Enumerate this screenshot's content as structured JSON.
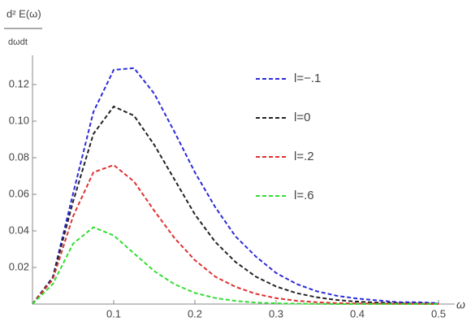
{
  "chart_data": {
    "type": "line",
    "ylabel": "d² E(ω)",
    "ylabel_denominator": "dωdt",
    "xlabel": "ω",
    "x": [
      0,
      0.025,
      0.05,
      0.075,
      0.1,
      0.125,
      0.15,
      0.175,
      0.2,
      0.225,
      0.25,
      0.275,
      0.3,
      0.325,
      0.35,
      0.375,
      0.4,
      0.425,
      0.45,
      0.475,
      0.5
    ],
    "series": [
      {
        "name": "l=−.1",
        "color": "#2b2bd9",
        "values": [
          0,
          0.0147,
          0.0604,
          0.105,
          0.128,
          0.129,
          0.115,
          0.094,
          0.072,
          0.053,
          0.037,
          0.026,
          0.017,
          0.011,
          0.007,
          0.0045,
          0.003,
          0.002,
          0.001,
          0.001,
          0.0005
        ]
      },
      {
        "name": "l=0",
        "color": "#222222",
        "values": [
          0,
          0.0143,
          0.056,
          0.093,
          0.108,
          0.103,
          0.087,
          0.068,
          0.049,
          0.034,
          0.023,
          0.015,
          0.0096,
          0.006,
          0.0037,
          0.0022,
          0.0013,
          0.0008,
          0.0005,
          0.0003,
          0.0002
        ]
      },
      {
        "name": "l=.2",
        "color": "#e03030",
        "values": [
          0,
          0.0134,
          0.048,
          0.072,
          0.076,
          0.067,
          0.051,
          0.036,
          0.024,
          0.015,
          0.0094,
          0.0056,
          0.0032,
          0.0018,
          0.001,
          0.0005,
          0.0003,
          0.0002,
          0.0001,
          0.0001,
          0
        ]
      },
      {
        "name": "l=.6",
        "color": "#33dd33",
        "values": [
          0,
          0.0109,
          0.033,
          0.042,
          0.0375,
          0.0277,
          0.018,
          0.0108,
          0.0061,
          0.0033,
          0.0017,
          0.0008,
          0.0004,
          0.0002,
          0.0001,
          0,
          0,
          0,
          0,
          0,
          0
        ]
      }
    ],
    "xlim": [
      0,
      0.52
    ],
    "ylim": [
      0,
      0.136
    ],
    "xticks": [
      0.1,
      0.2,
      0.3,
      0.4,
      0.5
    ],
    "yticks": [
      0.02,
      0.04,
      0.06,
      {
        "value": 0.08,
        "label": "0.08"
      },
      {
        "value": 0.1,
        "label": "0.10"
      },
      0.12
    ],
    "line_style": "dashed",
    "legend": "upper-right"
  }
}
